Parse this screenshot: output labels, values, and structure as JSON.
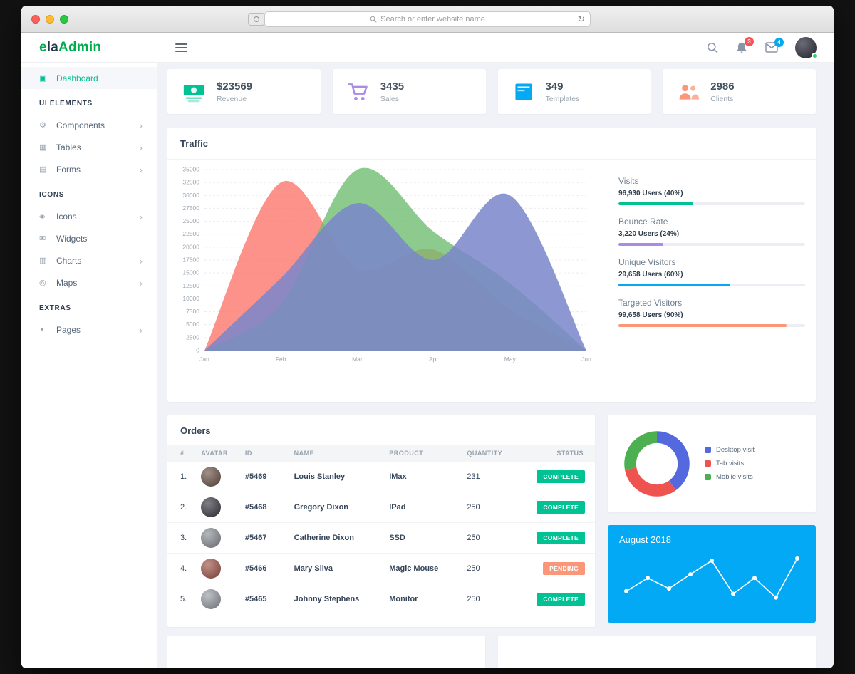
{
  "browser": {
    "search_placeholder": "Search or enter website name"
  },
  "icons": {
    "dashboard": "▣",
    "components": "⚙",
    "tables": "▦",
    "forms": "▤",
    "icons": "◈",
    "widgets": "✉",
    "charts": "▥",
    "maps": "◎",
    "pages": "▼",
    "chevron": "›",
    "reload": "↻"
  },
  "app_header": {
    "logo_e": "e",
    "logo_la": "la",
    "logo_admin": "Admin",
    "notification_count": "3",
    "message_count": "4",
    "colors": {
      "notification_badge": "#fa5252",
      "message_badge": "#03a9f3",
      "logo_green": "#00ab4e",
      "logo_dark": "#22374e"
    }
  },
  "sidebar": {
    "dashboard": {
      "label": "Dashboard",
      "active_color": "#00c292"
    },
    "sections": [
      {
        "header": "UI ELEMENTS",
        "items": [
          {
            "label": "Components",
            "has_children": true
          },
          {
            "label": "Tables",
            "has_children": true
          },
          {
            "label": "Forms",
            "has_children": true
          }
        ]
      },
      {
        "header": "ICONS",
        "items": [
          {
            "label": "Icons",
            "has_children": true
          },
          {
            "label": "Widgets",
            "has_children": false
          },
          {
            "label": "Charts",
            "has_children": true
          },
          {
            "label": "Maps",
            "has_children": true
          }
        ]
      },
      {
        "header": "EXTRAS",
        "items": [
          {
            "label": "Pages",
            "has_children": true
          }
        ]
      }
    ]
  },
  "stats": [
    {
      "value": "$23569",
      "label": "Revenue",
      "color": "#00c292"
    },
    {
      "value": "3435",
      "label": "Sales",
      "color": "#ab8ce4"
    },
    {
      "value": "349",
      "label": "Templates",
      "color": "#03a9f3"
    },
    {
      "value": "2986",
      "label": "Clients",
      "color": "#fb9678"
    }
  ],
  "traffic": {
    "title": "Traffic",
    "metrics": [
      {
        "title": "Visits",
        "detail": "96,930 Users (40%)",
        "percent": 40,
        "color": "#00c292"
      },
      {
        "title": "Bounce Rate",
        "detail": "3,220 Users (24%)",
        "percent": 24,
        "color": "#ab8ce4"
      },
      {
        "title": "Unique Visitors",
        "detail": "29,658 Users (60%)",
        "percent": 60,
        "color": "#03a9f3"
      },
      {
        "title": "Targeted Visitors",
        "detail": "99,658 Users (90%)",
        "percent": 90,
        "color": "#fb9678"
      }
    ]
  },
  "orders": {
    "title": "Orders",
    "columns": [
      "#",
      "AVATAR",
      "ID",
      "NAME",
      "PRODUCT",
      "QUANTITY",
      "STATUS"
    ],
    "status_colors": {
      "COMPLETE": "#00c292",
      "PENDING": "#fb9678"
    },
    "rows": [
      {
        "num": "1.",
        "avatar_color": "#6d5548",
        "id": "#5469",
        "name": "Louis Stanley",
        "product": "IMax",
        "quantity": "231",
        "status": "COMPLETE"
      },
      {
        "num": "2.",
        "avatar_color": "#3c3a45",
        "id": "#5468",
        "name": "Gregory Dixon",
        "product": "IPad",
        "quantity": "250",
        "status": "COMPLETE"
      },
      {
        "num": "3.",
        "avatar_color": "#8d9298",
        "id": "#5467",
        "name": "Catherine Dixon",
        "product": "SSD",
        "quantity": "250",
        "status": "COMPLETE"
      },
      {
        "num": "4.",
        "avatar_color": "#a3564b",
        "id": "#5466",
        "name": "Mary Silva",
        "product": "Magic Mouse",
        "quantity": "250",
        "status": "PENDING"
      },
      {
        "num": "5.",
        "avatar_color": "#9aa0a6",
        "id": "#5465",
        "name": "Johnny Stephens",
        "product": "Monitor",
        "quantity": "250",
        "status": "COMPLETE"
      }
    ]
  },
  "august": {
    "title": "August 2018",
    "bg": "#03a9f4"
  },
  "chart_data": [
    {
      "id": "traffic",
      "type": "area",
      "title": "Traffic",
      "x": [
        "Jan",
        "Feb",
        "Mar",
        "Apr",
        "May",
        "Jun"
      ],
      "ylim": [
        0,
        35000
      ],
      "ytick_step": 2500,
      "grid": true,
      "legend_position": "none",
      "series": [
        {
          "name": "series-red",
          "color": "#fb6d62",
          "opacity": 0.75,
          "values": [
            0,
            32500,
            16000,
            19500,
            8000,
            0
          ]
        },
        {
          "name": "series-green",
          "color": "#6fbe70",
          "opacity": 0.8,
          "values": [
            0,
            9000,
            35000,
            23000,
            13000,
            0
          ]
        },
        {
          "name": "series-indigo",
          "color": "#7986cb",
          "opacity": 0.85,
          "values": [
            0,
            14000,
            28500,
            17500,
            30000,
            0
          ]
        }
      ]
    },
    {
      "id": "visits-donut",
      "type": "pie",
      "donut": true,
      "labels": [
        "Desktop visit",
        "Tab visits",
        "Mobile visits"
      ],
      "values": [
        40,
        32,
        28
      ],
      "colors": [
        "#5569df",
        "#ef5350",
        "#4caf50"
      ],
      "legend_position": "right"
    },
    {
      "id": "august",
      "type": "line",
      "title": "August 2018",
      "x": [
        1,
        2,
        3,
        4,
        5,
        6,
        7,
        8,
        9
      ],
      "values": [
        30,
        55,
        35,
        62,
        88,
        25,
        55,
        18,
        92
      ],
      "ylim": [
        0,
        100
      ],
      "color": "#ffffff",
      "grid": false
    }
  ]
}
